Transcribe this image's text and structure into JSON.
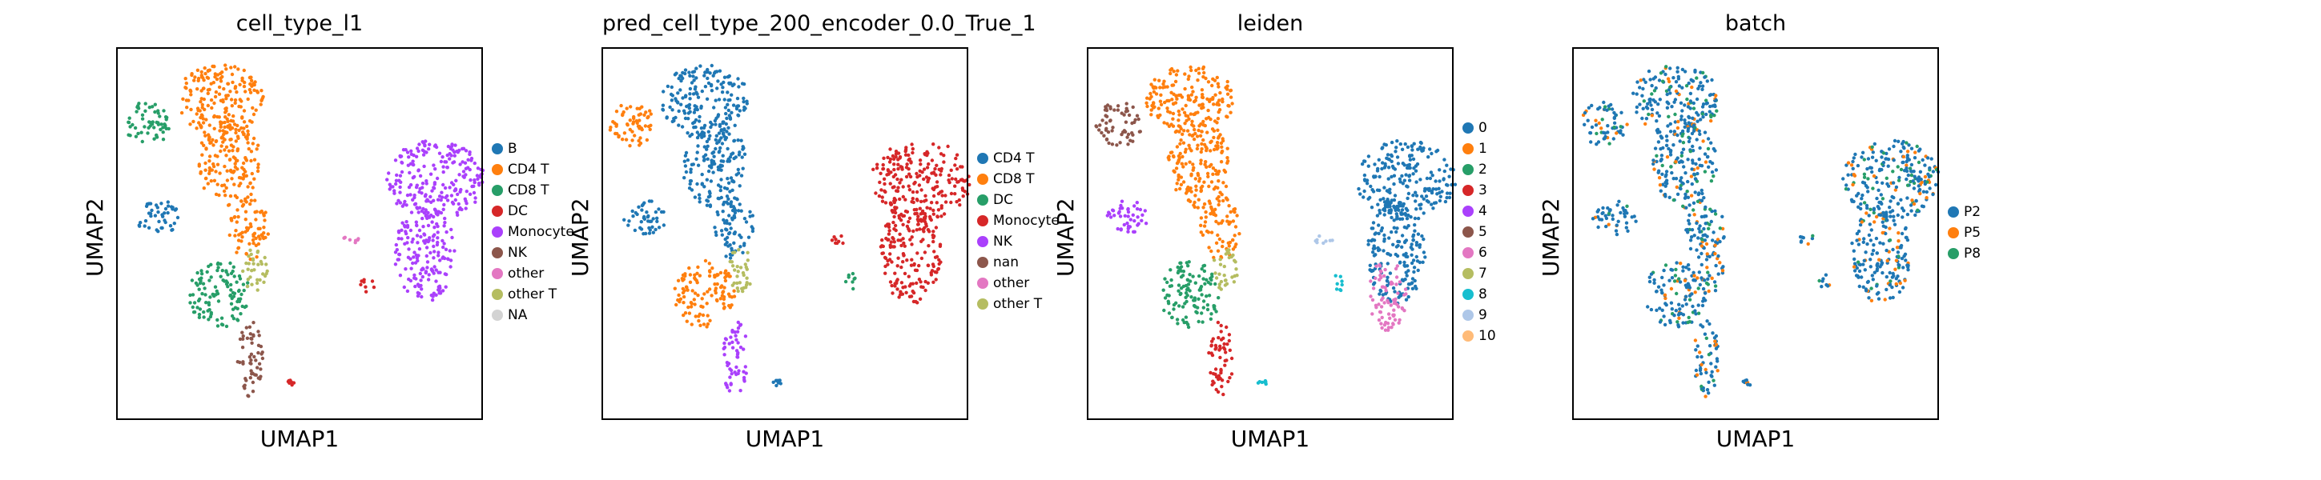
{
  "figure": {
    "panels": [
      {
        "id": "cell_type_l1",
        "title": "cell_type_l1",
        "xlabel": "UMAP1",
        "ylabel": "UMAP2",
        "legend": [
          {
            "label": "B",
            "color": "#1f77b4"
          },
          {
            "label": "CD4 T",
            "color": "#ff7f0e"
          },
          {
            "label": "CD8 T",
            "color": "#279e68"
          },
          {
            "label": "DC",
            "color": "#d62728"
          },
          {
            "label": "Monocyte",
            "color": "#aa40fc"
          },
          {
            "label": "NK",
            "color": "#8c564b"
          },
          {
            "label": "other",
            "color": "#e377c2"
          },
          {
            "label": "other T",
            "color": "#b5bd61"
          },
          {
            "label": "NA",
            "color": "#d3d3d3"
          }
        ],
        "regions": {
          "top_left_blob": "#279e68",
          "top_stream": "#ff7f0e",
          "left_mid": "#1f77b4",
          "mid_lower": "#279e68",
          "lower_tail": "#8c564b",
          "mid_bright": "#b5bd61",
          "right_blob": "#aa40fc",
          "right_small": "#e377c2",
          "right_dot": "#d62728",
          "tiny_bottom": "#d62728"
        }
      },
      {
        "id": "pred_cell_type",
        "title": "pred_cell_type_200_encoder_0.0_True_1",
        "xlabel": "UMAP1",
        "ylabel": "UMAP2",
        "legend": [
          {
            "label": "CD4 T",
            "color": "#1f77b4"
          },
          {
            "label": "CD8 T",
            "color": "#ff7f0e"
          },
          {
            "label": "DC",
            "color": "#279e68"
          },
          {
            "label": "Monocyte",
            "color": "#d62728"
          },
          {
            "label": "NK",
            "color": "#aa40fc"
          },
          {
            "label": "nan",
            "color": "#8c564b"
          },
          {
            "label": "other",
            "color": "#e377c2"
          },
          {
            "label": "other T",
            "color": "#b5bd61"
          }
        ],
        "regions": {
          "top_left_blob": "#ff7f0e",
          "top_stream": "#1f77b4",
          "left_mid": "#1f77b4",
          "mid_lower": "#ff7f0e",
          "lower_tail": "#aa40fc",
          "mid_bright": "#b5bd61",
          "right_blob": "#d62728",
          "right_small": "#d62728",
          "right_dot": "#279e68",
          "tiny_bottom": "#1f77b4"
        }
      },
      {
        "id": "leiden",
        "title": "leiden",
        "xlabel": "UMAP1",
        "ylabel": "UMAP2",
        "legend": [
          {
            "label": "0",
            "color": "#1f77b4"
          },
          {
            "label": "1",
            "color": "#ff7f0e"
          },
          {
            "label": "2",
            "color": "#279e68"
          },
          {
            "label": "3",
            "color": "#d62728"
          },
          {
            "label": "4",
            "color": "#aa40fc"
          },
          {
            "label": "5",
            "color": "#8c564b"
          },
          {
            "label": "6",
            "color": "#e377c2"
          },
          {
            "label": "7",
            "color": "#b5bd61"
          },
          {
            "label": "8",
            "color": "#17becf"
          },
          {
            "label": "9",
            "color": "#aec7e8"
          },
          {
            "label": "10",
            "color": "#ffbb78"
          }
        ],
        "regions": {
          "top_left_blob": "#8c564b",
          "top_stream": "#ff7f0e",
          "left_mid": "#aa40fc",
          "mid_lower": "#279e68",
          "lower_tail": "#d62728",
          "mid_bright": "#b5bd61",
          "right_blob": "#1f77b4",
          "right_small": "#aec7e8",
          "right_dot": "#17becf",
          "right_tail": "#e377c2",
          "tiny_bottom": "#17becf"
        }
      },
      {
        "id": "batch",
        "title": "batch",
        "xlabel": "UMAP1",
        "ylabel": "UMAP2",
        "legend": [
          {
            "label": "P2",
            "color": "#1f77b4"
          },
          {
            "label": "P5",
            "color": "#ff7f0e"
          },
          {
            "label": "P8",
            "color": "#279e68"
          }
        ],
        "regions": {
          "top_left_blob": "#1f77b4",
          "top_stream": "#1f77b4",
          "left_mid": "#1f77b4",
          "mid_lower": "#1f77b4",
          "lower_tail": "#1f77b4",
          "mid_bright": "#1f77b4",
          "right_blob": "#1f77b4",
          "right_small": "#1f77b4",
          "right_dot": "#1f77b4",
          "tiny_bottom": "#1f77b4"
        },
        "overlay_mix": [
          "#ff7f0e",
          "#279e68"
        ]
      }
    ]
  },
  "chart_data": [
    {
      "type": "scatter",
      "title": "cell_type_l1",
      "xlabel": "UMAP1",
      "ylabel": "UMAP2",
      "ticks": "none",
      "grid": false,
      "legend_position": "right",
      "series": [
        {
          "name": "B"
        },
        {
          "name": "CD4 T"
        },
        {
          "name": "CD8 T"
        },
        {
          "name": "DC"
        },
        {
          "name": "Monocyte"
        },
        {
          "name": "NK"
        },
        {
          "name": "other"
        },
        {
          "name": "other T"
        },
        {
          "name": "NA"
        }
      ]
    },
    {
      "type": "scatter",
      "title": "pred_cell_type_200_encoder_0.0_True_1",
      "xlabel": "UMAP1",
      "ylabel": "UMAP2",
      "ticks": "none",
      "grid": false,
      "legend_position": "right",
      "series": [
        {
          "name": "CD4 T"
        },
        {
          "name": "CD8 T"
        },
        {
          "name": "DC"
        },
        {
          "name": "Monocyte"
        },
        {
          "name": "NK"
        },
        {
          "name": "nan"
        },
        {
          "name": "other"
        },
        {
          "name": "other T"
        }
      ]
    },
    {
      "type": "scatter",
      "title": "leiden",
      "xlabel": "UMAP1",
      "ylabel": "UMAP2",
      "ticks": "none",
      "grid": false,
      "legend_position": "right",
      "series": [
        {
          "name": "0"
        },
        {
          "name": "1"
        },
        {
          "name": "2"
        },
        {
          "name": "3"
        },
        {
          "name": "4"
        },
        {
          "name": "5"
        },
        {
          "name": "6"
        },
        {
          "name": "7"
        },
        {
          "name": "8"
        },
        {
          "name": "9"
        },
        {
          "name": "10"
        }
      ]
    },
    {
      "type": "scatter",
      "title": "batch",
      "xlabel": "UMAP1",
      "ylabel": "UMAP2",
      "ticks": "none",
      "grid": false,
      "legend_position": "right",
      "series": [
        {
          "name": "P2"
        },
        {
          "name": "P5"
        },
        {
          "name": "P8"
        }
      ]
    }
  ]
}
